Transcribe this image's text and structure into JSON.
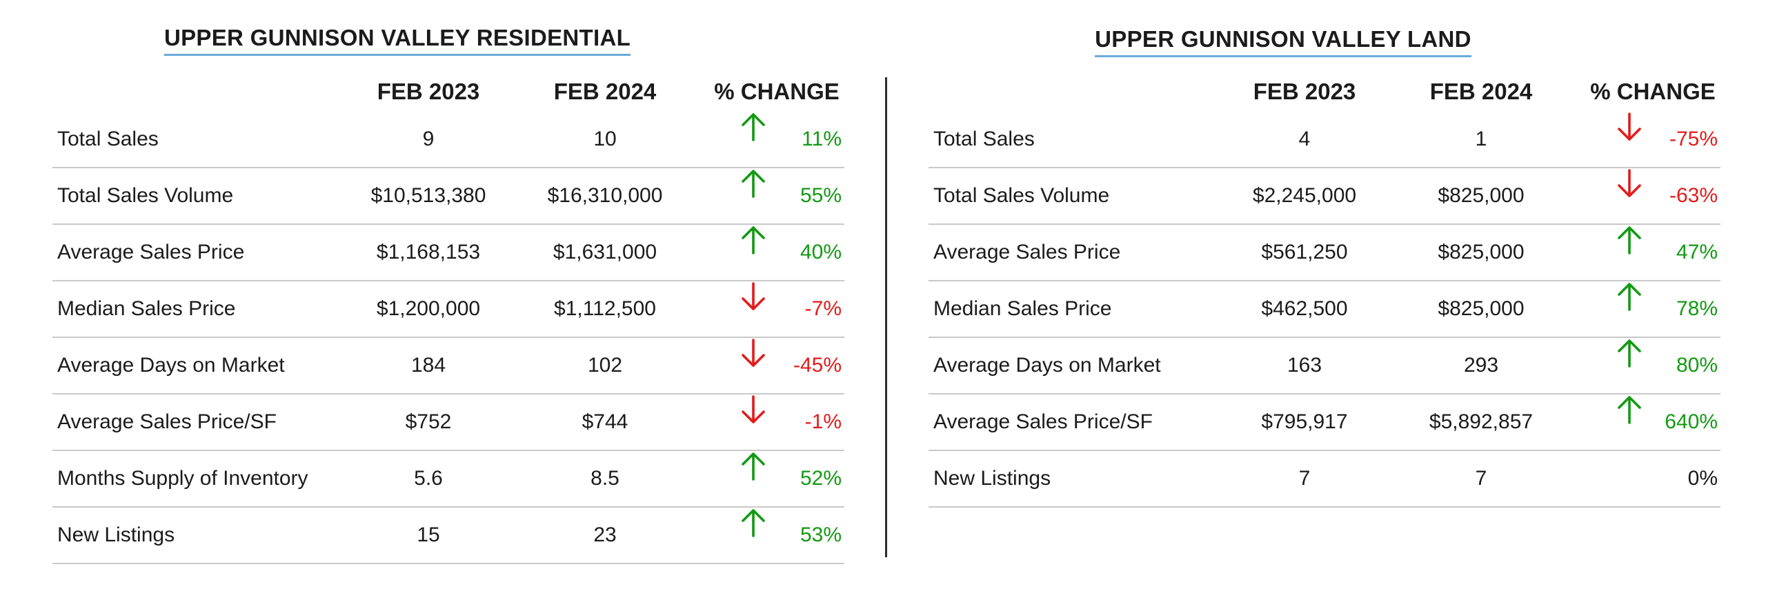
{
  "colors": {
    "up": "#129a12",
    "down": "#e21b1b",
    "title_underline": "#6aaad8"
  },
  "residential": {
    "title": "UPPER GUNNISON VALLEY RESIDENTIAL",
    "headers": {
      "col1": "FEB 2023",
      "col2": "FEB 2024",
      "col3": "% CHANGE"
    },
    "rows": [
      {
        "label": "Total Sales",
        "feb2023": "9",
        "feb2024": "10",
        "change": "11%",
        "direction": "up"
      },
      {
        "label": "Total Sales Volume",
        "feb2023": "$10,513,380",
        "feb2024": "$16,310,000",
        "change": "55%",
        "direction": "up"
      },
      {
        "label": "Average Sales Price",
        "feb2023": "$1,168,153",
        "feb2024": "$1,631,000",
        "change": "40%",
        "direction": "up"
      },
      {
        "label": "Median Sales Price",
        "feb2023": "$1,200,000",
        "feb2024": "$1,112,500",
        "change": "-7%",
        "direction": "down"
      },
      {
        "label": "Average Days on Market",
        "feb2023": "184",
        "feb2024": "102",
        "change": "-45%",
        "direction": "down"
      },
      {
        "label": "Average Sales Price/SF",
        "feb2023": "$752",
        "feb2024": "$744",
        "change": "-1%",
        "direction": "down"
      },
      {
        "label": "Months Supply of Inventory",
        "feb2023": "5.6",
        "feb2024": "8.5",
        "change": "52%",
        "direction": "up"
      },
      {
        "label": "New Listings",
        "feb2023": "15",
        "feb2024": "23",
        "change": "53%",
        "direction": "up"
      }
    ]
  },
  "land": {
    "title": "UPPER GUNNISON VALLEY LAND",
    "headers": {
      "col1": "FEB 2023",
      "col2": "FEB 2024",
      "col3": "% CHANGE"
    },
    "rows": [
      {
        "label": "Total Sales",
        "feb2023": "4",
        "feb2024": "1",
        "change": "-75%",
        "direction": "down"
      },
      {
        "label": "Total Sales Volume",
        "feb2023": "$2,245,000",
        "feb2024": "$825,000",
        "change": "-63%",
        "direction": "down"
      },
      {
        "label": "Average Sales Price",
        "feb2023": "$561,250",
        "feb2024": "$825,000",
        "change": "47%",
        "direction": "up"
      },
      {
        "label": "Median Sales Price",
        "feb2023": "$462,500",
        "feb2024": "$825,000",
        "change": "78%",
        "direction": "up"
      },
      {
        "label": "Average Days on Market",
        "feb2023": "163",
        "feb2024": "293",
        "change": "80%",
        "direction": "up"
      },
      {
        "label": "Average Sales Price/SF",
        "feb2023": "$795,917",
        "feb2024": "$5,892,857",
        "change": "640%",
        "direction": "up"
      },
      {
        "label": "New Listings",
        "feb2023": "7",
        "feb2024": "7",
        "change": "0%",
        "direction": "flat"
      }
    ]
  }
}
